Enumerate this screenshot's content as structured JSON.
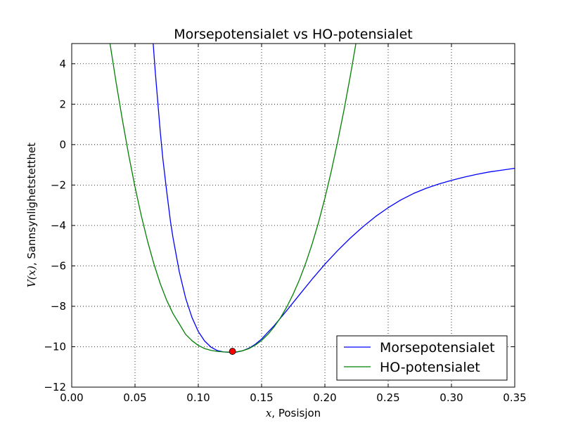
{
  "chart_data": {
    "type": "line",
    "title": "Morsepotensialet vs HO-potensialet",
    "xlabel_var": "x",
    "xlabel": ", Posisjon",
    "ylabel_var": "V(x)",
    "ylabel": ", Sannsynlighetstetthet",
    "xlim": [
      0.0,
      0.35
    ],
    "ylim": [
      -12,
      5
    ],
    "xticks": [
      0.0,
      0.05,
      0.1,
      0.15,
      0.2,
      0.25,
      0.3,
      0.35
    ],
    "xtick_labels": [
      "0.00",
      "0.05",
      "0.10",
      "0.15",
      "0.20",
      "0.25",
      "0.30",
      "0.35"
    ],
    "yticks": [
      -12,
      -10,
      -8,
      -6,
      -4,
      -2,
      0,
      2,
      4
    ],
    "ytick_labels": [
      "−12",
      "−10",
      "−8",
      "−6",
      "−4",
      "−2",
      "0",
      "2",
      "4"
    ],
    "grid": true,
    "legend_position": "lower-right",
    "series": [
      {
        "name": "Morsepotensialet",
        "color": "#0000ff",
        "x": [
          0.062,
          0.064,
          0.066,
          0.068,
          0.07,
          0.072,
          0.075,
          0.078,
          0.08,
          0.085,
          0.09,
          0.095,
          0.1,
          0.105,
          0.11,
          0.115,
          0.12,
          0.125,
          0.127,
          0.13,
          0.135,
          0.14,
          0.145,
          0.15,
          0.16,
          0.17,
          0.18,
          0.19,
          0.2,
          0.21,
          0.22,
          0.23,
          0.24,
          0.25,
          0.26,
          0.27,
          0.28,
          0.29,
          0.3,
          0.31,
          0.32,
          0.33,
          0.34,
          0.35
        ],
        "y": [
          7.2,
          5.3,
          3.6,
          2.1,
          0.6,
          -0.7,
          -2.3,
          -3.8,
          -4.6,
          -6.3,
          -7.6,
          -8.55,
          -9.25,
          -9.72,
          -10.02,
          -10.19,
          -10.26,
          -10.28,
          -10.28,
          -10.27,
          -10.2,
          -10.07,
          -9.88,
          -9.62,
          -8.95,
          -8.2,
          -7.42,
          -6.65,
          -5.92,
          -5.25,
          -4.63,
          -4.07,
          -3.56,
          -3.12,
          -2.74,
          -2.42,
          -2.16,
          -1.95,
          -1.77,
          -1.61,
          -1.47,
          -1.35,
          -1.26,
          -1.17
        ]
      },
      {
        "name": "HO-potensialet",
        "color": "#008000",
        "x": [
          0.028,
          0.035,
          0.04,
          0.045,
          0.05,
          0.055,
          0.06,
          0.065,
          0.07,
          0.075,
          0.08,
          0.085,
          0.09,
          0.095,
          0.1,
          0.105,
          0.11,
          0.115,
          0.12,
          0.125,
          0.127,
          0.13,
          0.135,
          0.14,
          0.145,
          0.15,
          0.155,
          0.16,
          0.165,
          0.17,
          0.175,
          0.18,
          0.185,
          0.19,
          0.195,
          0.2,
          0.205,
          0.21,
          0.215,
          0.22,
          0.225,
          0.23
        ],
        "y": [
          5.9,
          3.1,
          1.23,
          -0.51,
          -2.1,
          -3.53,
          -4.8,
          -5.92,
          -6.89,
          -7.7,
          -8.36,
          -8.87,
          -9.39,
          -9.7,
          -9.94,
          -10.09,
          -10.18,
          -10.23,
          -10.26,
          -10.27,
          -10.27,
          -10.26,
          -10.2,
          -10.09,
          -9.92,
          -9.69,
          -9.39,
          -9.01,
          -8.56,
          -8.02,
          -7.39,
          -6.67,
          -5.84,
          -4.9,
          -3.84,
          -2.65,
          -1.33,
          0.12,
          1.68,
          3.37,
          5.18,
          7.2
        ]
      }
    ],
    "marker": {
      "x": 0.127,
      "y": -10.23,
      "color": "#ff0000"
    }
  }
}
